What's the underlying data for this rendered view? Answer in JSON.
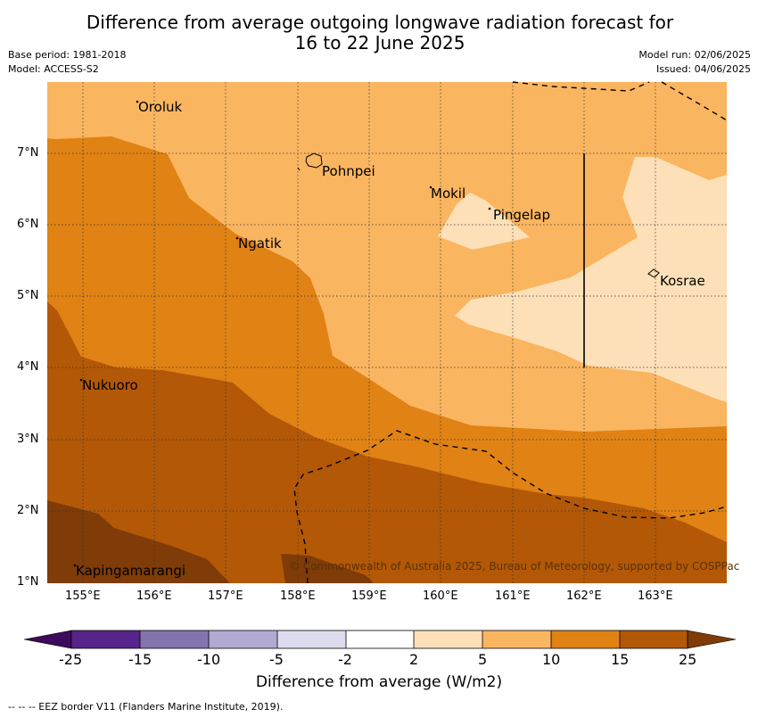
{
  "title_line1": "Difference from average outgoing longwave radiation forecast for",
  "title_line2": "16 to 22 June 2025",
  "base_period": "Base period: 1981-2018",
  "model": "Model: ACCESS-S2",
  "model_run": "Model run: 02/06/2025",
  "issued": "Issued: 04/06/2025",
  "lon_labels": [
    "155°E",
    "156°E",
    "157°E",
    "158°E",
    "159°E",
    "160°E",
    "161°E",
    "162°E",
    "163°E"
  ],
  "lat_labels": [
    "7°N",
    "6°N",
    "5°N",
    "4°N",
    "3°N",
    "2°N",
    "1°N"
  ],
  "places": [
    "Oroluk",
    "Pohnpei",
    "Mokil",
    "Pingelap",
    "Ngatik",
    "Kosrae",
    "Nukuoro",
    "Kapingamarangi"
  ],
  "copyright": "© Commonwealth of Australia 2025, Bureau of Meteorology, supported by COSPPac",
  "colorbar": {
    "ticks": [
      "-25",
      "-15",
      "-10",
      "-5",
      "-2",
      "2",
      "5",
      "10",
      "15",
      "25"
    ],
    "colors": [
      "#3d0a5c",
      "#56248a",
      "#8474ae",
      "#b2aad2",
      "#dcdcee",
      "#ffffff",
      "#fde0b8",
      "#fab560",
      "#e08214",
      "#b35806",
      "#7f3b08"
    ],
    "label": "Difference from average (W/m2)"
  },
  "legend_note": "-- -- -- EEZ border V11 (Flanders Marine Institute, 2019)."
}
